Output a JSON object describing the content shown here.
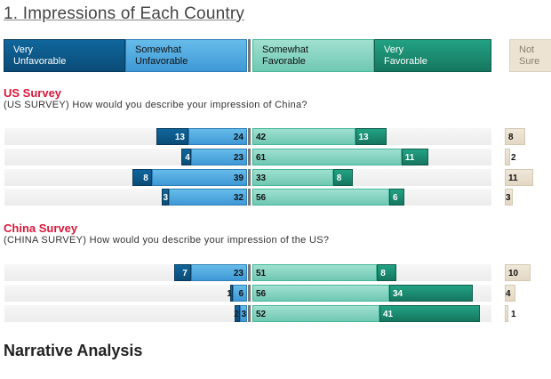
{
  "title": "1. Impressions of Each Country",
  "legend": {
    "very_unfavorable": [
      "Very",
      "Unfavorable"
    ],
    "somewhat_unfavorable": [
      "Somewhat",
      "Unfavorable"
    ],
    "somewhat_favorable": [
      "Somewhat",
      "Favorable"
    ],
    "very_favorable": [
      "Very",
      "Favorable"
    ],
    "not_sure": [
      "Not",
      "Sure"
    ]
  },
  "colors": {
    "very_unfavorable": "#0e5a8a",
    "somewhat_unfavorable": "#55ade2",
    "somewhat_favorable": "#8fd8c6",
    "very_favorable": "#1b8a6e",
    "not_sure": "#ece3d3",
    "section": "#d9173a"
  },
  "narrative": "Narrative Analysis",
  "chart_data": [
    {
      "type": "bar",
      "title": "US Survey",
      "subtitle": "(US SURVEY) How would you describe your impression of China?",
      "series_keys": [
        "very_unfavorable",
        "somewhat_unfavorable",
        "somewhat_favorable",
        "very_favorable",
        "not_sure"
      ],
      "rows": [
        [
          13,
          24,
          42,
          13,
          8
        ],
        [
          4,
          23,
          61,
          11,
          2
        ],
        [
          8,
          39,
          33,
          8,
          11
        ],
        [
          3,
          32,
          56,
          6,
          3
        ]
      ]
    },
    {
      "type": "bar",
      "title": "China Survey",
      "subtitle": "(CHINA SURVEY) How would you describe your impression of the US?",
      "series_keys": [
        "very_unfavorable",
        "somewhat_unfavorable",
        "somewhat_favorable",
        "very_favorable",
        "not_sure"
      ],
      "rows": [
        [
          7,
          23,
          51,
          8,
          10
        ],
        [
          1,
          6,
          56,
          34,
          4
        ],
        [
          2,
          3,
          52,
          41,
          1
        ]
      ]
    }
  ]
}
